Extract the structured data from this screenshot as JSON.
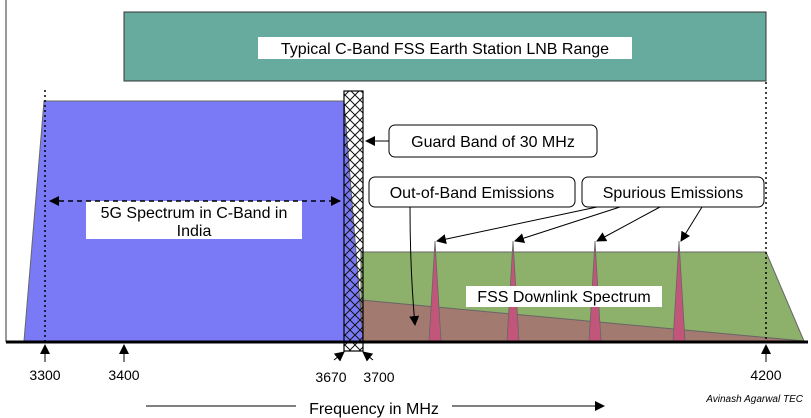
{
  "header": {
    "lnb_range_label": "Typical C-Band FSS Earth Station LNB Range"
  },
  "regions": {
    "five_g_label_line1": "5G Spectrum in C-Band in",
    "five_g_label_line2": "India",
    "fss_label": "FSS Downlink Spectrum"
  },
  "callouts": {
    "guard_band": "Guard Band of 30 MHz",
    "out_of_band": "Out-of-Band Emissions",
    "spurious": "Spurious Emissions"
  },
  "axis": {
    "ticks": [
      "3300",
      "3400",
      "3670",
      "3700",
      "4200"
    ],
    "label": "Frequency in MHz"
  },
  "credit": "Avinash Agarwal TEC",
  "colors": {
    "lnb_fill": "#67AB9F",
    "five_g_fill": "#7A7AF7",
    "fss_fill": "#8DB06B",
    "emission_fill": "#C2557A",
    "overlap_fill": "#A77171"
  }
}
